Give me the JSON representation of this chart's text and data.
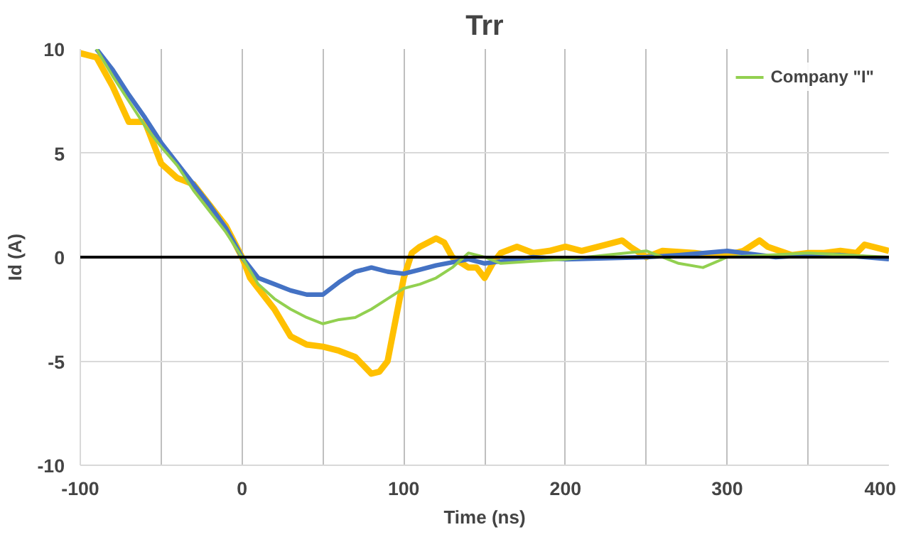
{
  "chart_data": {
    "type": "line",
    "title": "Trr",
    "xlabel": "Time (ns)",
    "ylabel": "Id (A)",
    "xlim": [
      -100,
      400
    ],
    "ylim": [
      -10,
      10
    ],
    "xticks": [
      -100,
      {
        "value": -50,
        "label": null
      },
      0,
      {
        "value": 50,
        "label": null
      },
      100,
      {
        "value": 150,
        "label": null
      },
      200,
      {
        "value": 250,
        "label": null
      },
      300,
      {
        "value": 350,
        "label": null
      },
      400
    ],
    "yticks": [
      -10,
      -5,
      0,
      5,
      10
    ],
    "grid": true,
    "legend": "top right",
    "marker": "none",
    "line_style": "solid",
    "ref_lines": [
      {
        "axis": "y",
        "value": 0,
        "color": "#000000"
      }
    ],
    "series": [
      {
        "color": "#ffc000",
        "x": [
          -100,
          -90,
          -80,
          -70,
          -60,
          -50,
          -40,
          -30,
          -20,
          -10,
          0,
          5,
          10,
          20,
          30,
          40,
          50,
          60,
          70,
          80,
          85,
          90,
          95,
          100,
          105,
          110,
          120,
          125,
          130,
          140,
          145,
          150,
          155,
          160,
          170,
          180,
          190,
          200,
          210,
          225,
          235,
          240,
          250,
          260,
          280,
          290,
          300,
          310,
          320,
          325,
          340,
          350,
          360,
          370,
          380,
          385,
          395,
          400
        ],
        "values": [
          9.8,
          9.6,
          8.2,
          6.5,
          6.5,
          4.5,
          3.8,
          3.5,
          2.5,
          1.5,
          0,
          -1,
          -1.5,
          -2.5,
          -3.8,
          -4.2,
          -4.3,
          -4.5,
          -4.8,
          -5.6,
          -5.5,
          -5,
          -3,
          -1,
          0.2,
          0.5,
          0.9,
          0.7,
          0,
          -0.5,
          -0.5,
          -1,
          -0.3,
          0.2,
          0.5,
          0.2,
          0.3,
          0.5,
          0.3,
          0.6,
          0.8,
          0.5,
          0,
          0.3,
          0.2,
          0.1,
          0.1,
          0.3,
          0.8,
          0.5,
          0.1,
          0.2,
          0.2,
          0.3,
          0.2,
          0.6,
          0.4,
          0.3
        ]
      },
      {
        "color": "#4472c4",
        "x": [
          -90,
          -80,
          -70,
          -60,
          -50,
          -40,
          -30,
          -20,
          -10,
          0,
          10,
          20,
          30,
          40,
          50,
          60,
          70,
          80,
          90,
          100,
          110,
          120,
          140,
          150,
          160,
          180,
          200,
          250,
          270,
          300,
          310,
          330,
          350,
          370,
          400
        ],
        "values": [
          10,
          9,
          7.8,
          6.7,
          5.5,
          4.5,
          3.5,
          2.5,
          1.4,
          0,
          -1,
          -1.3,
          -1.6,
          -1.8,
          -1.8,
          -1.2,
          -0.7,
          -0.5,
          -0.7,
          -0.8,
          -0.6,
          -0.4,
          -0.1,
          -0.3,
          -0.2,
          0,
          -0.1,
          0,
          0.1,
          0.3,
          0.2,
          0,
          0.1,
          0.1,
          -0.1
        ]
      },
      {
        "name": "Company \"I\"",
        "color": "#92d050",
        "x": [
          -90,
          -80,
          -70,
          -60,
          -50,
          -40,
          -30,
          -20,
          -10,
          0,
          10,
          20,
          30,
          40,
          50,
          60,
          70,
          80,
          90,
          100,
          110,
          120,
          130,
          140,
          150,
          160,
          180,
          200,
          250,
          270,
          285,
          300,
          350,
          400
        ],
        "values": [
          10,
          8.7,
          7.5,
          6.3,
          5.3,
          4.4,
          3.2,
          2.2,
          1.2,
          0,
          -1.3,
          -2,
          -2.5,
          -2.9,
          -3.2,
          -3,
          -2.9,
          -2.5,
          -2,
          -1.5,
          -1.3,
          -1,
          -0.5,
          0.2,
          0,
          -0.3,
          -0.2,
          -0.1,
          0.3,
          -0.3,
          -0.5,
          0,
          0.2,
          0
        ]
      }
    ]
  }
}
